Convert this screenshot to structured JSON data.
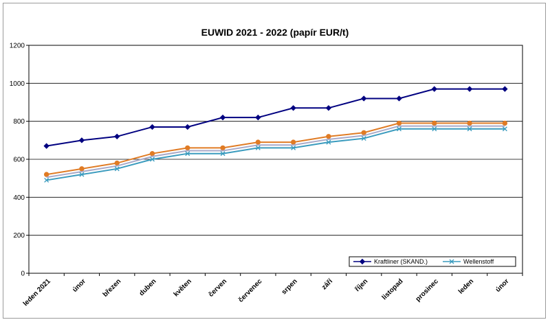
{
  "chart_data": {
    "type": "line",
    "title": "EUWID 2021 - 2022 (papír EUR/t)",
    "xlabel": "",
    "ylabel": "",
    "ylim": [
      0,
      1200
    ],
    "yticks": [
      0,
      200,
      400,
      600,
      800,
      1000,
      1200
    ],
    "grid": true,
    "legend_position": "bottom-right",
    "categories": [
      "leden 2021",
      "únor",
      "březen",
      "duben",
      "květen",
      "červen",
      "červenec",
      "srpen",
      "září",
      "říjen",
      "listopad",
      "prosinec",
      "leden",
      "únor"
    ],
    "series": [
      {
        "name": "Kraftliner (SKAND.)",
        "color": "#000080",
        "marker": "diamond",
        "in_legend": true,
        "values": [
          670,
          700,
          720,
          770,
          770,
          820,
          820,
          870,
          870,
          920,
          920,
          970,
          970,
          970
        ]
      },
      {
        "name": "",
        "color": "#E07B24",
        "marker": "circle",
        "in_legend": false,
        "values": [
          520,
          550,
          580,
          630,
          660,
          660,
          690,
          690,
          720,
          740,
          790,
          790,
          790,
          790
        ]
      },
      {
        "name": "",
        "color": "#A9A9C8",
        "marker": "none",
        "in_legend": false,
        "values": [
          505,
          535,
          565,
          615,
          645,
          645,
          675,
          675,
          705,
          725,
          775,
          775,
          775,
          775
        ]
      },
      {
        "name": "Wellenstoff",
        "color": "#3A9BBE",
        "marker": "x",
        "in_legend": true,
        "values": [
          490,
          520,
          550,
          600,
          630,
          630,
          660,
          660,
          690,
          710,
          760,
          760,
          760,
          760
        ]
      }
    ]
  }
}
